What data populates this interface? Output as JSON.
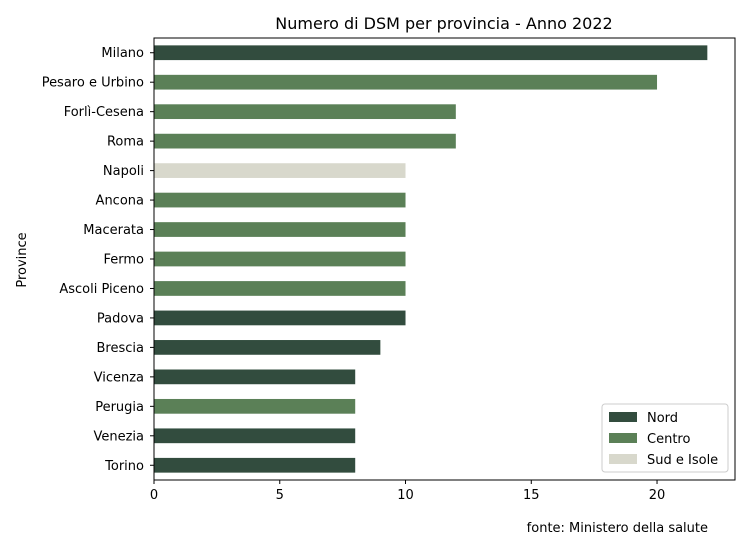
{
  "chart_data": {
    "type": "bar",
    "orientation": "horizontal",
    "title": "Numero di DSM per provincia - Anno 2022",
    "xlabel": "",
    "ylabel": "Province",
    "xlim": [
      0,
      23.1
    ],
    "xticks": [
      0,
      5,
      10,
      15,
      20
    ],
    "grid": false,
    "legend_position": "bottom-right",
    "categories": [
      "Milano",
      "Pesaro e Urbino",
      "Forlì-Cesena",
      "Roma",
      "Napoli",
      "Ancona",
      "Macerata",
      "Fermo",
      "Ascoli Piceno",
      "Padova",
      "Brescia",
      "Vicenza",
      "Perugia",
      "Venezia",
      "Torino"
    ],
    "values": [
      22,
      20,
      12,
      12,
      10,
      10,
      10,
      10,
      10,
      10,
      9,
      8,
      8,
      8,
      8
    ],
    "groups": [
      "Nord",
      "Centro",
      "Centro",
      "Centro",
      "Sud e Isole",
      "Centro",
      "Centro",
      "Centro",
      "Centro",
      "Nord",
      "Nord",
      "Nord",
      "Centro",
      "Nord",
      "Nord"
    ],
    "legend": [
      {
        "name": "Nord",
        "color": "#324c3e"
      },
      {
        "name": "Centro",
        "color": "#5b8057"
      },
      {
        "name": "Sud e Isole",
        "color": "#d8d8cc"
      }
    ],
    "source_note": "fonte: Ministero della salute"
  }
}
